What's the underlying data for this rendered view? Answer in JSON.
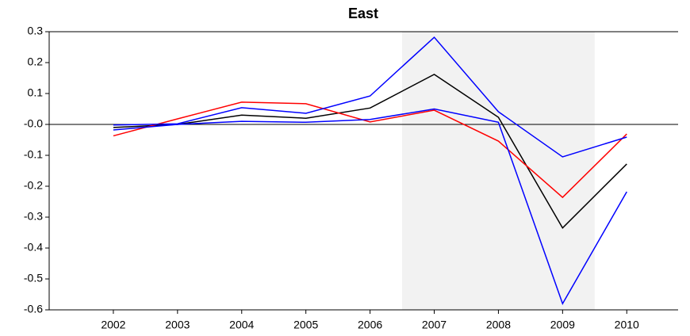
{
  "chart_data": {
    "type": "line",
    "title": "East",
    "x": [
      2002,
      2003,
      2004,
      2005,
      2006,
      2007,
      2008,
      2009,
      2010
    ],
    "series": [
      {
        "color": "#000000",
        "values": [
          -0.01,
          0.0,
          0.03,
          0.02,
          0.053,
          0.162,
          0.023,
          -0.335,
          -0.128
        ]
      },
      {
        "color": "#ff0000",
        "values": [
          -0.037,
          0.018,
          0.072,
          0.067,
          0.008,
          0.046,
          -0.054,
          -0.236,
          -0.031
        ]
      },
      {
        "color": "#0000ff",
        "values": [
          -0.002,
          0.002,
          0.054,
          0.036,
          0.092,
          0.282,
          0.041,
          -0.105,
          -0.041
        ]
      },
      {
        "color": "#0000ff",
        "values": [
          -0.018,
          0.0,
          0.01,
          0.007,
          0.016,
          0.05,
          0.007,
          -0.58,
          -0.218
        ]
      }
    ],
    "xlim": [
      2001,
      2010.8
    ],
    "xticks": [
      2002,
      2003,
      2004,
      2005,
      2006,
      2007,
      2008,
      2009,
      2010
    ],
    "ylim": [
      -0.6,
      0.3
    ],
    "yticks": [
      0.3,
      0.2,
      0.1,
      {
        "value": 0,
        "label": "-0.0"
      },
      -0.1,
      -0.2,
      -0.3,
      -0.4,
      -0.5,
      -0.6
    ],
    "shaded_x": [
      2006.5,
      2009.5
    ],
    "zero_line": true
  }
}
